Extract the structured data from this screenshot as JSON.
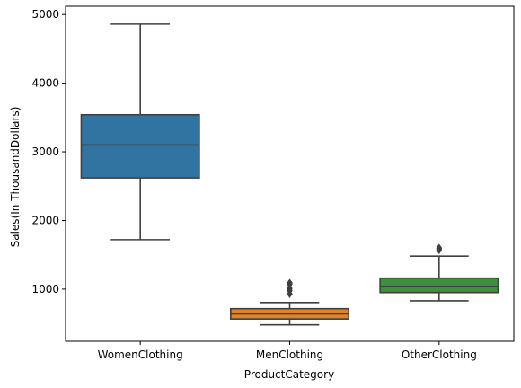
{
  "chart_data": {
    "type": "box",
    "title": "",
    "xlabel": "ProductCategory",
    "ylabel": "Sales(In ThousandDollars)",
    "ylim": [
      240,
      5120
    ],
    "yticks": [
      1000,
      2000,
      3000,
      4000,
      5000
    ],
    "grid": false,
    "legend": "none",
    "categories": [
      "WomenClothing",
      "MenClothing",
      "OtherClothing"
    ],
    "boxes": [
      {
        "category": "WomenClothing",
        "color": "#3274a1",
        "whisker_low": 1720,
        "q1": 2620,
        "median": 3100,
        "q3": 3540,
        "whisker_high": 4860,
        "outliers": []
      },
      {
        "category": "MenClothing",
        "color": "#e1812c",
        "whisker_low": 480,
        "q1": 565,
        "median": 640,
        "q3": 715,
        "whisker_high": 805,
        "outliers": [
          930,
          980,
          1010,
          1070,
          1090
        ]
      },
      {
        "category": "OtherClothing",
        "color": "#3a923a",
        "whisker_low": 830,
        "q1": 950,
        "median": 1040,
        "q3": 1160,
        "whisker_high": 1480,
        "outliers": [
          1570,
          1590,
          1600
        ]
      }
    ]
  }
}
